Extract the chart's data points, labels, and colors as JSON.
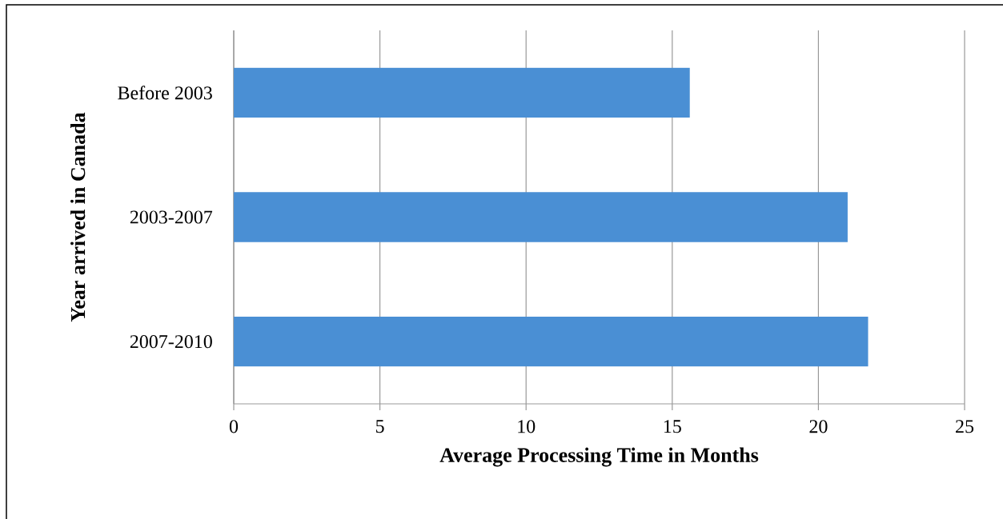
{
  "chart_data": {
    "type": "bar",
    "orientation": "horizontal",
    "categories": [
      "Before 2003",
      "2003-2007",
      "2007-2010"
    ],
    "values": [
      15.6,
      21.0,
      21.7
    ],
    "color": "#4a8fd4",
    "xlim": [
      0,
      25
    ],
    "xticks": [
      0,
      5,
      10,
      15,
      20,
      25
    ],
    "grid": "x",
    "xlabel": "Average Processing Time in Months",
    "ylabel": "Year arrived in Canada"
  }
}
